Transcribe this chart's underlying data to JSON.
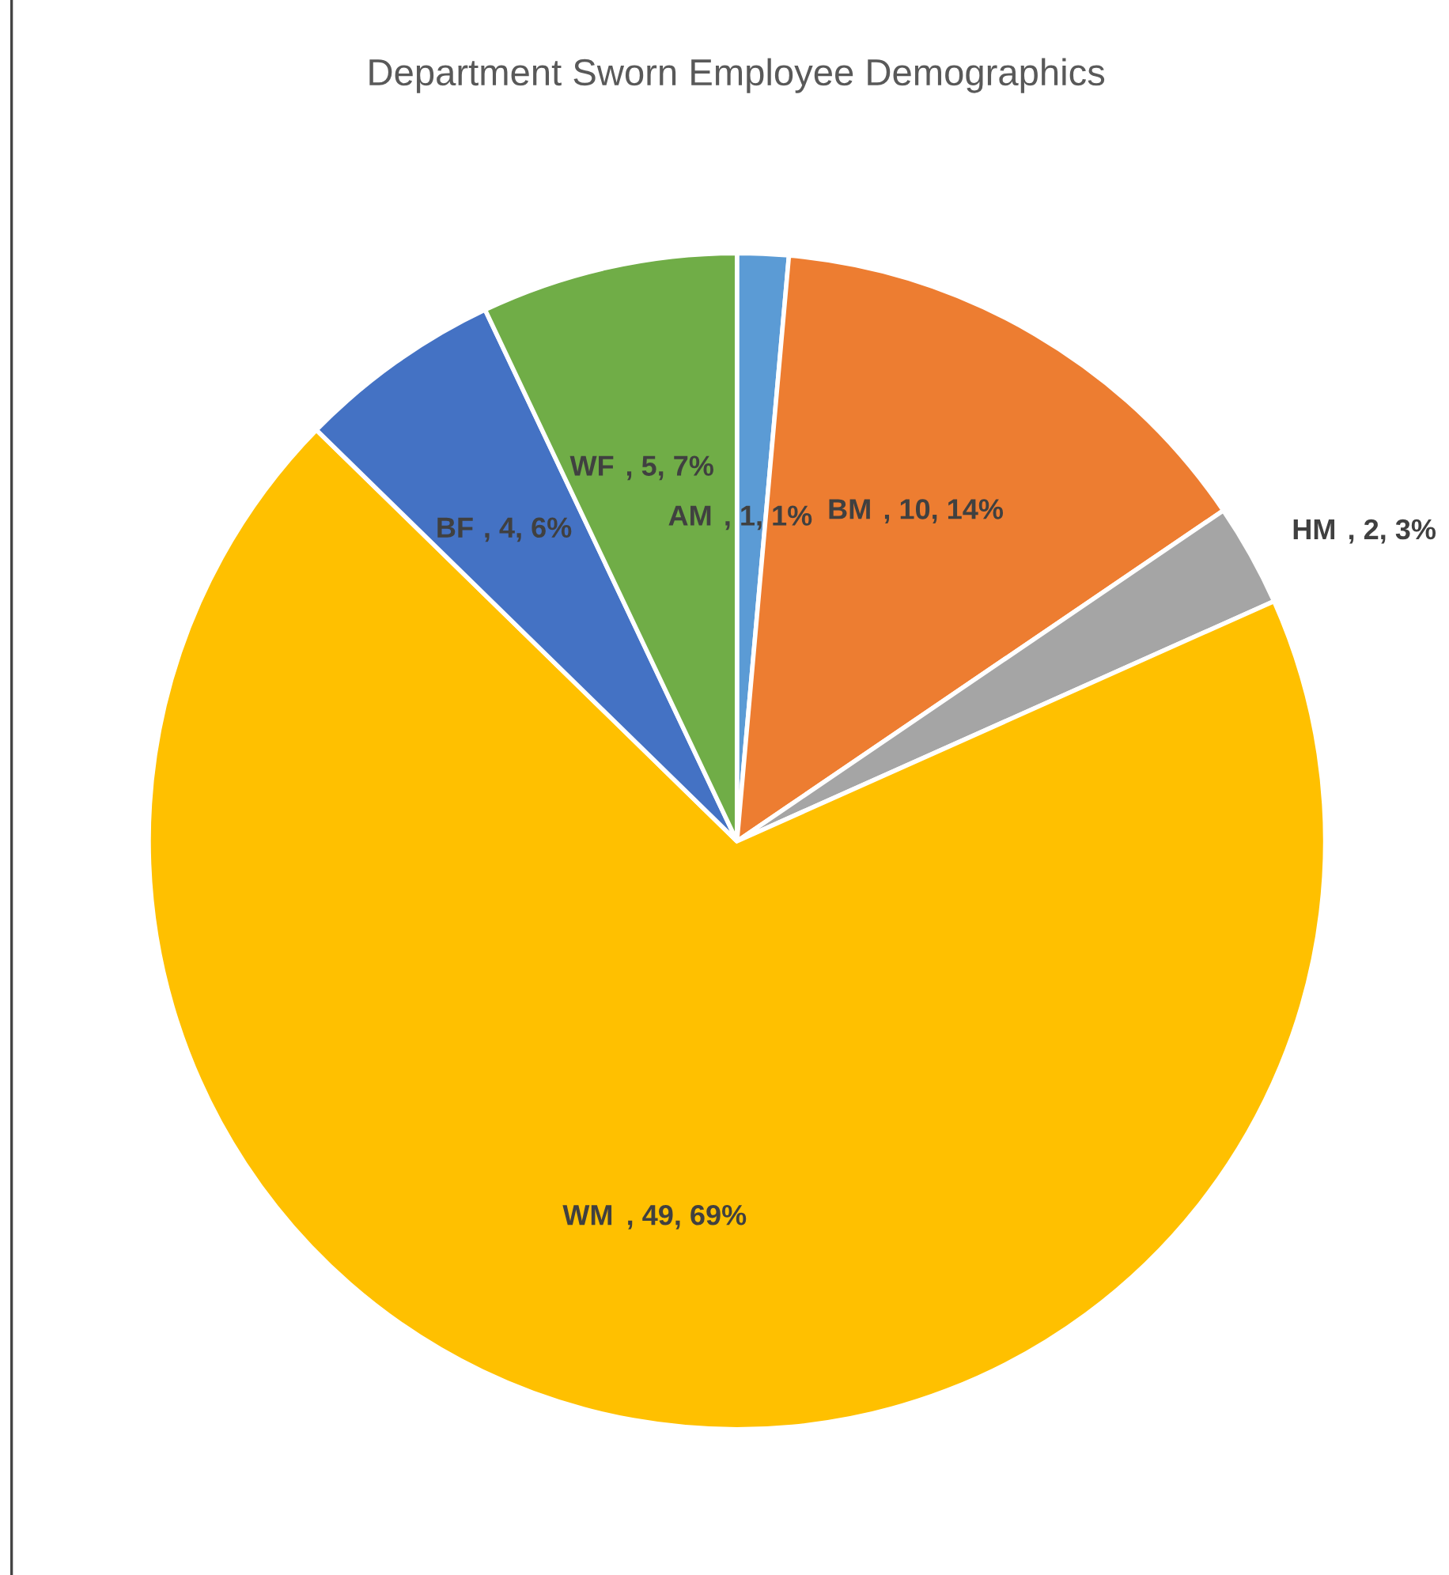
{
  "chart_data": {
    "type": "pie",
    "title": "Department Sworn Employee Demographics",
    "categories": [
      "AM",
      "BM",
      "HM",
      "WM",
      "BF",
      "WF"
    ],
    "values": [
      1,
      10,
      2,
      49,
      4,
      5
    ],
    "colors": [
      "#5b9bd5",
      "#ed7d31",
      "#a5a5a5",
      "#ffc000",
      "#4472c4",
      "#70ad47"
    ],
    "value_labels": [
      ", 1, 1%",
      ", 10, 14%",
      ", 2, 3%",
      ", 49, 69%",
      ", 4, 6%",
      ", 5, 7%"
    ],
    "legend": false
  }
}
